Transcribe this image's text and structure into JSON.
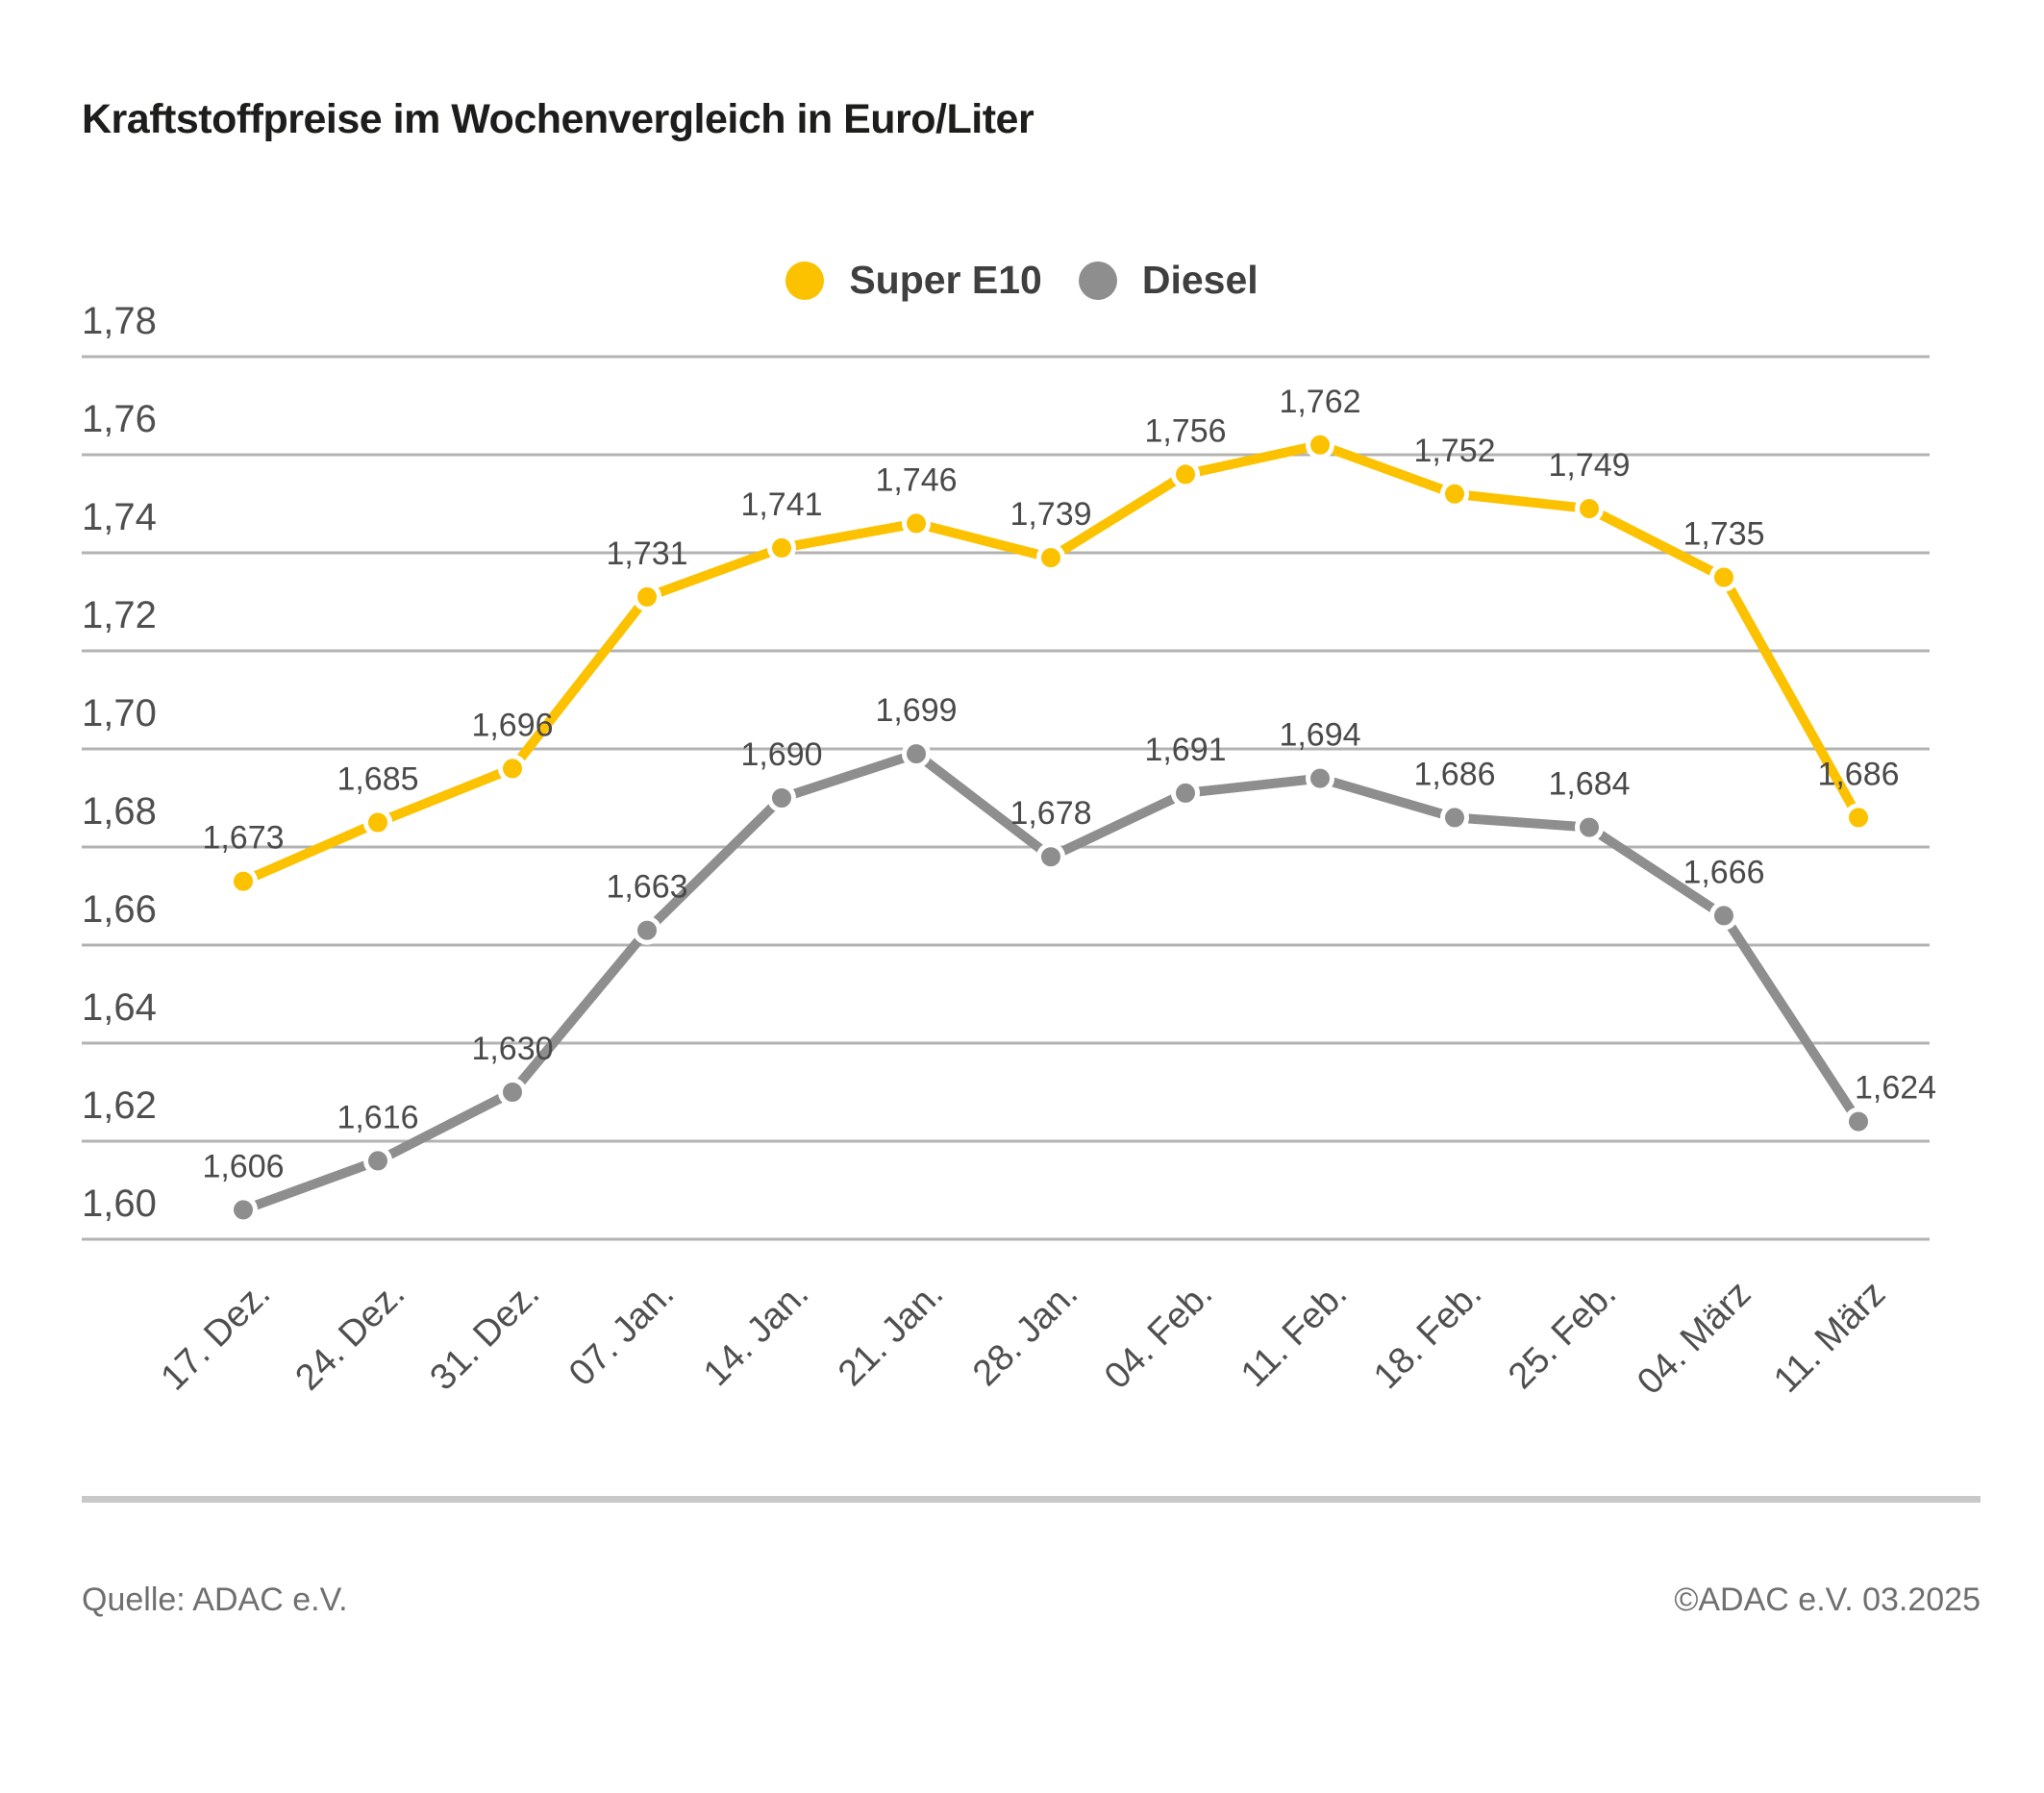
{
  "title": "Kraftstoffpreise im Wochenvergleich in Euro/Liter",
  "footer": {
    "source": "Quelle: ADAC e.V.",
    "copyright": "©ADAC e.V. 03.2025"
  },
  "colors": {
    "super_e10": "#FCC200",
    "diesel": "#8E8E8E",
    "gridline": "#b3b3b3",
    "axis_label": "#4f4f4f",
    "data_label": "#4a4a4a",
    "title_text": "#1d1d1b",
    "footer_text": "#6f6f6f",
    "divider": "#c8c8c8",
    "background": "#ffffff"
  },
  "chart_data": {
    "type": "line",
    "title": "Kraftstoffpreise im Wochenvergleich in Euro/Liter",
    "xlabel": "",
    "ylabel": "",
    "unit": "Euro/Liter",
    "grid": "horizontal",
    "legend_position": "top-center",
    "categories": [
      "17. Dez.",
      "24. Dez.",
      "31. Dez.",
      "07. Jan.",
      "14. Jan.",
      "21. Jan.",
      "28. Jan.",
      "04. Feb.",
      "11. Feb.",
      "18. Feb.",
      "25. Feb.",
      "04. März",
      "11. März"
    ],
    "y_axis": {
      "min": 1.6,
      "max": 1.78,
      "step": 0.02,
      "tick_labels": [
        "1,60",
        "1,62",
        "1,64",
        "1,66",
        "1,68",
        "1,70",
        "1,72",
        "1,74",
        "1,76",
        "1,78"
      ]
    },
    "series": [
      {
        "name": "Super E10",
        "color": "#FCC200",
        "values": [
          1.673,
          1.685,
          1.696,
          1.731,
          1.741,
          1.746,
          1.739,
          1.756,
          1.762,
          1.752,
          1.749,
          1.735,
          1.686
        ],
        "labels": [
          "1,673",
          "1,685",
          "1,696",
          "1,731",
          "1,741",
          "1,746",
          "1,739",
          "1,756",
          "1,762",
          "1,752",
          "1,749",
          "1,735",
          "1,686"
        ]
      },
      {
        "name": "Diesel",
        "color": "#8E8E8E",
        "values": [
          1.606,
          1.616,
          1.63,
          1.663,
          1.69,
          1.699,
          1.678,
          1.691,
          1.694,
          1.686,
          1.684,
          1.666,
          1.624
        ],
        "labels": [
          "1,606",
          "1,616",
          "1,630",
          "1,663",
          "1,690",
          "1,699",
          "1,678",
          "1,691",
          "1,694",
          "1,686",
          "1,684",
          "1,666",
          "1,624"
        ]
      }
    ]
  }
}
